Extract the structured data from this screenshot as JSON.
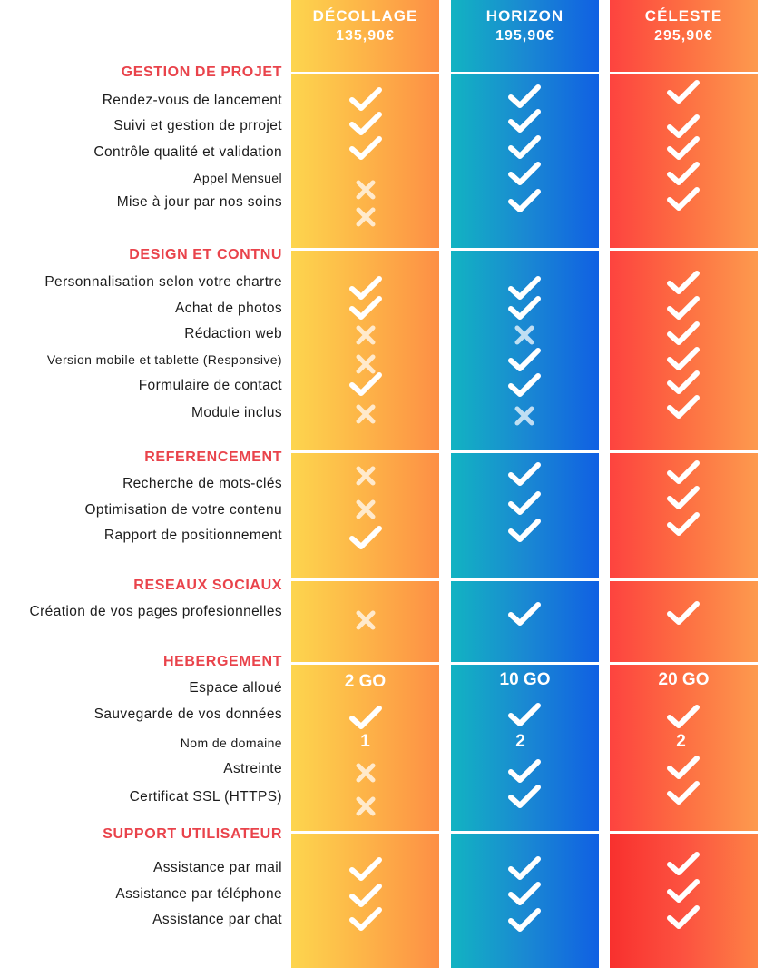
{
  "plans": [
    {
      "name": "DÉCOLLAGE",
      "price": "135,90€"
    },
    {
      "name": "HORIZON",
      "price": "195,90€"
    },
    {
      "name": "CÉLESTE",
      "price": "295,90€"
    }
  ],
  "sections": {
    "gestion": {
      "title": "GESTION DE PROJET",
      "items": [
        "Rendez-vous de lancement",
        "Suivi et gestion de prrojet",
        "Contrôle qualité et validation",
        "Appel Mensuel",
        "Mise à jour par nos soins"
      ]
    },
    "design": {
      "title": "DESIGN ET CONTNU",
      "items": [
        "Personnalisation selon votre chartre",
        "Achat de photos",
        "Rédaction web",
        "Version mobile et tablette (Responsive)",
        "Formulaire de contact",
        "Module inclus"
      ]
    },
    "referencement": {
      "title": "REFERENCEMENT",
      "items": [
        "Recherche de mots-clés",
        "Optimisation de votre contenu",
        "Rapport de positionnement"
      ]
    },
    "reseaux": {
      "title": "RESEAUX SOCIAUX",
      "items": [
        "Création de vos pages profesionnelles"
      ]
    },
    "hebergement": {
      "title": "HEBERGEMENT",
      "items": [
        "Espace alloué",
        "Sauvegarde de vos données",
        "Nom de domaine",
        "Astreinte",
        "Certificat SSL (HTTPS)"
      ]
    },
    "support": {
      "title": "SUPPORT UTILISATEUR",
      "items": [
        "Assistance par mail",
        "Assistance par téléphone",
        "Assistance par chat"
      ]
    }
  },
  "hosting_values": {
    "space": [
      "2 GO",
      "10 GO",
      "20 GO"
    ],
    "domains": [
      "1",
      "2",
      "2"
    ]
  },
  "colors": {
    "section_title": "#e9434b",
    "mark": "#ffffff"
  }
}
